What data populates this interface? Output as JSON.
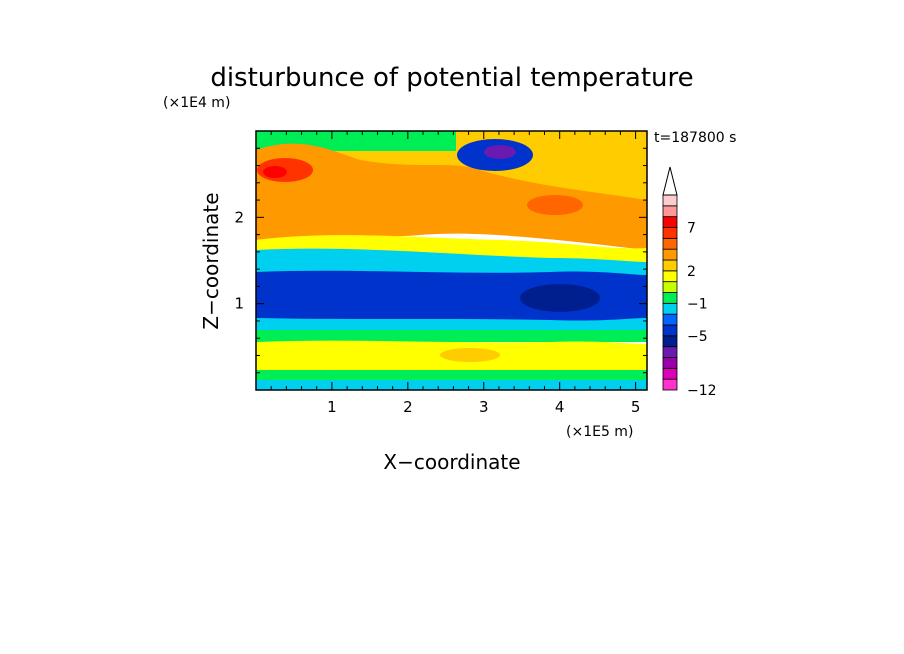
{
  "chart_data": {
    "type": "heatmap",
    "title": "disturbunce of potential temperature",
    "xlabel": "X−coordinate",
    "ylabel": "Z−coordinate",
    "x_unit": "(×1E5 m)",
    "y_unit": "(×1E4 m)",
    "time_label": "t=187800 s",
    "xlim": [
      0,
      5.15
    ],
    "ylim": [
      0,
      3.0
    ],
    "x_ticks": [
      "1",
      "2",
      "3",
      "4",
      "5"
    ],
    "x_tick_values": [
      1,
      2,
      3,
      4,
      5
    ],
    "y_ticks": [
      "1",
      "2"
    ],
    "y_tick_values": [
      1,
      2
    ],
    "colorbar": {
      "colors": [
        "#ff33cc",
        "#dd00bb",
        "#9900aa",
        "#6a1ab0",
        "#001f8f",
        "#0033cc",
        "#0066ff",
        "#00d0f0",
        "#00ee55",
        "#c8ff00",
        "#ffff00",
        "#ffcc00",
        "#ff9900",
        "#ff6600",
        "#ff3300",
        "#ff0000",
        "#ff9999",
        "#ffcccc"
      ],
      "labels": [
        "7",
        "2",
        "−1",
        "−5",
        "−12"
      ],
      "label_values": [
        7,
        2,
        -1,
        -5,
        -12
      ],
      "boundaries": [
        -12,
        -11,
        -10,
        -9,
        -7,
        -5,
        -3,
        -2,
        -1,
        0,
        1,
        2,
        3,
        4,
        5,
        7,
        8,
        9,
        10
      ]
    },
    "bands": [
      {
        "z_range": [
          0.0,
          0.15
        ],
        "approx_value": -0.5
      },
      {
        "z_range": [
          0.15,
          0.55
        ],
        "approx_value": 1.5
      },
      {
        "z_range": [
          0.55,
          0.85
        ],
        "approx_value": 0.2
      },
      {
        "z_range": [
          0.85,
          1.4
        ],
        "approx_value": -4.5
      },
      {
        "z_range": [
          1.4,
          1.9
        ],
        "approx_value": 0.5
      },
      {
        "z_range": [
          1.9,
          3.0
        ],
        "approx_value": 3
      }
    ]
  }
}
